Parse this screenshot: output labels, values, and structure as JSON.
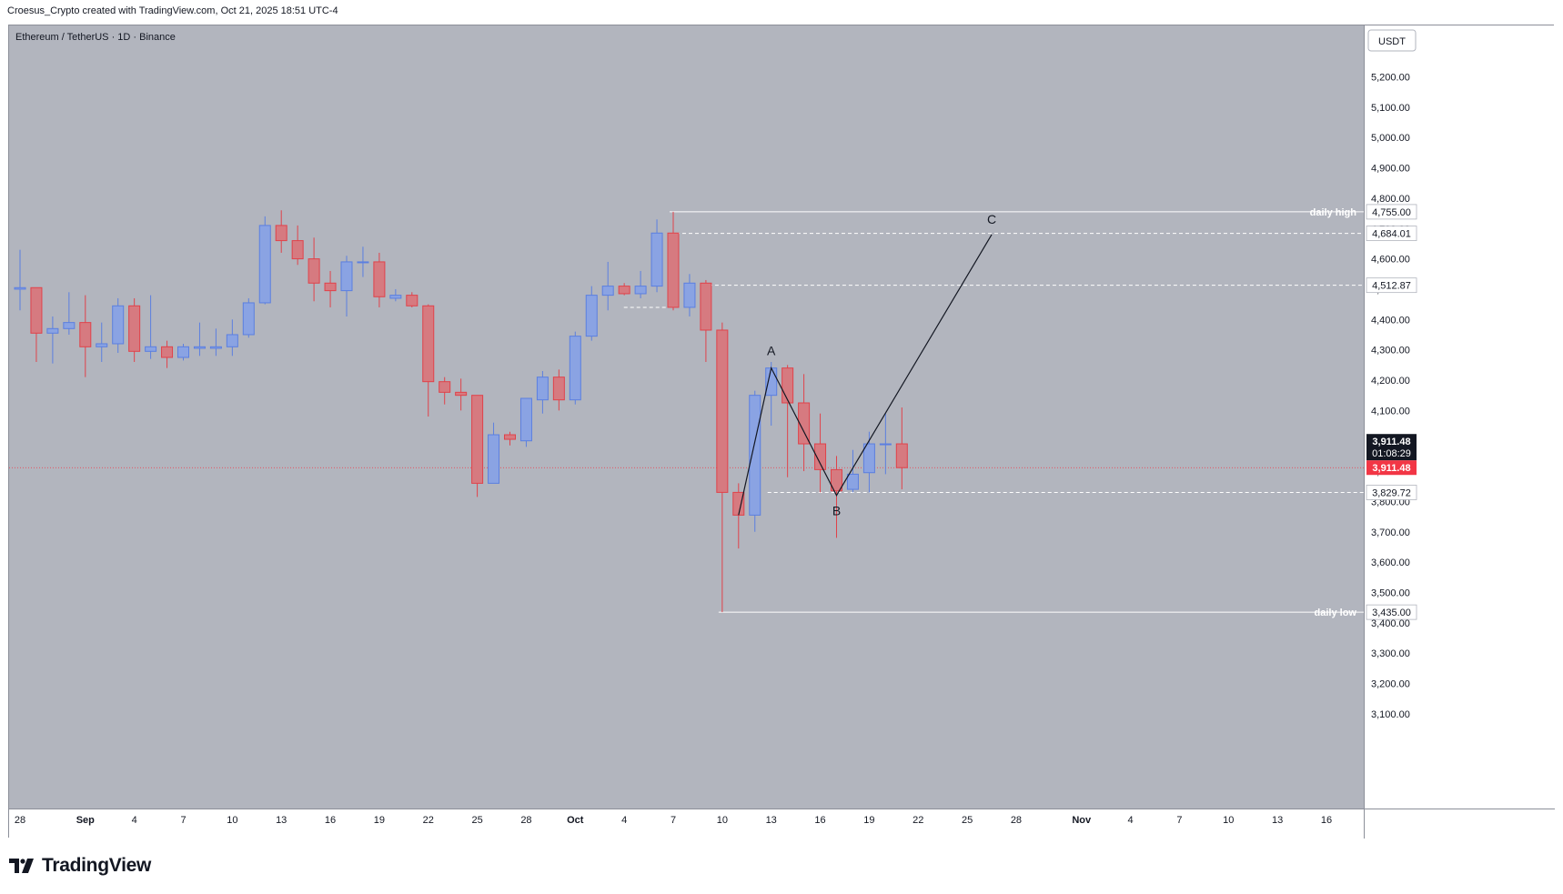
{
  "caption": "Croesus_Crypto created with TradingView.com, Oct 21, 2025 18:51 UTC-4",
  "brand": "TradingView",
  "colors": {
    "background": "#b2b5be",
    "bull": "#5b7fe0",
    "bull_fill": "#8aa3e3",
    "bear": "#e0424a",
    "bear_fill": "#d67a80",
    "annotation": "#ffffff",
    "pattern_line": "#131722",
    "current_price_label": "#f23645",
    "countdown_label": "#131722"
  },
  "chart_data": {
    "type": "candlestick",
    "title": "Ethereum / TetherUS · 1D · Binance",
    "currency": "USDT",
    "ylim": [
      3000,
      5300
    ],
    "y_ticks": [
      "5,200.00",
      "5,100.00",
      "5,000.00",
      "4,900.00",
      "4,800.00",
      "4,700.00",
      "4,600.00",
      "4,500.00",
      "4,400.00",
      "4,300.00",
      "4,200.00",
      "4,100.00",
      "4,000.00",
      "3,900.00",
      "3,800.00",
      "3,700.00",
      "3,600.00",
      "3,500.00",
      "3,400.00",
      "3,300.00",
      "3,200.00",
      "3,100.00"
    ],
    "x_ticks": [
      {
        "label": "28",
        "day": 0
      },
      {
        "label": "Sep",
        "day": 4,
        "bold": true
      },
      {
        "label": "4",
        "day": 7
      },
      {
        "label": "7",
        "day": 10
      },
      {
        "label": "10",
        "day": 13
      },
      {
        "label": "13",
        "day": 16
      },
      {
        "label": "16",
        "day": 19
      },
      {
        "label": "19",
        "day": 22
      },
      {
        "label": "22",
        "day": 25
      },
      {
        "label": "25",
        "day": 28
      },
      {
        "label": "28",
        "day": 31
      },
      {
        "label": "Oct",
        "day": 34,
        "bold": true
      },
      {
        "label": "4",
        "day": 37
      },
      {
        "label": "7",
        "day": 40
      },
      {
        "label": "10",
        "day": 43
      },
      {
        "label": "13",
        "day": 46
      },
      {
        "label": "16",
        "day": 49
      },
      {
        "label": "19",
        "day": 52
      },
      {
        "label": "22",
        "day": 55
      },
      {
        "label": "25",
        "day": 58
      },
      {
        "label": "28",
        "day": 61
      },
      {
        "label": "Nov",
        "day": 65,
        "bold": true
      },
      {
        "label": "4",
        "day": 68
      },
      {
        "label": "7",
        "day": 71
      },
      {
        "label": "10",
        "day": 74
      },
      {
        "label": "13",
        "day": 77
      },
      {
        "label": "16",
        "day": 80
      }
    ],
    "candles": [
      {
        "d": 0,
        "o": 4500,
        "h": 4630,
        "l": 4430,
        "c": 4505
      },
      {
        "d": 1,
        "o": 4505,
        "h": 4505,
        "l": 4260,
        "c": 4355
      },
      {
        "d": 2,
        "o": 4355,
        "h": 4410,
        "l": 4255,
        "c": 4370
      },
      {
        "d": 3,
        "o": 4370,
        "h": 4490,
        "l": 4350,
        "c": 4390
      },
      {
        "d": 4,
        "o": 4390,
        "h": 4480,
        "l": 4210,
        "c": 4310
      },
      {
        "d": 5,
        "o": 4310,
        "h": 4390,
        "l": 4260,
        "c": 4320
      },
      {
        "d": 6,
        "o": 4320,
        "h": 4470,
        "l": 4290,
        "c": 4445
      },
      {
        "d": 7,
        "o": 4445,
        "h": 4470,
        "l": 4260,
        "c": 4295
      },
      {
        "d": 8,
        "o": 4295,
        "h": 4480,
        "l": 4270,
        "c": 4310
      },
      {
        "d": 9,
        "o": 4310,
        "h": 4330,
        "l": 4240,
        "c": 4275
      },
      {
        "d": 10,
        "o": 4275,
        "h": 4320,
        "l": 4265,
        "c": 4310
      },
      {
        "d": 11,
        "o": 4305,
        "h": 4390,
        "l": 4280,
        "c": 4310
      },
      {
        "d": 12,
        "o": 4305,
        "h": 4370,
        "l": 4280,
        "c": 4310
      },
      {
        "d": 13,
        "o": 4310,
        "h": 4400,
        "l": 4280,
        "c": 4350
      },
      {
        "d": 14,
        "o": 4350,
        "h": 4470,
        "l": 4340,
        "c": 4455
      },
      {
        "d": 15,
        "o": 4455,
        "h": 4740,
        "l": 4450,
        "c": 4710
      },
      {
        "d": 16,
        "o": 4710,
        "h": 4760,
        "l": 4620,
        "c": 4660
      },
      {
        "d": 17,
        "o": 4660,
        "h": 4710,
        "l": 4580,
        "c": 4600
      },
      {
        "d": 18,
        "o": 4600,
        "h": 4670,
        "l": 4460,
        "c": 4520
      },
      {
        "d": 19,
        "o": 4520,
        "h": 4560,
        "l": 4440,
        "c": 4495
      },
      {
        "d": 20,
        "o": 4495,
        "h": 4610,
        "l": 4410,
        "c": 4590
      },
      {
        "d": 21,
        "o": 4590,
        "h": 4640,
        "l": 4540,
        "c": 4590
      },
      {
        "d": 22,
        "o": 4590,
        "h": 4620,
        "l": 4440,
        "c": 4475
      },
      {
        "d": 23,
        "o": 4470,
        "h": 4500,
        "l": 4460,
        "c": 4480
      },
      {
        "d": 24,
        "o": 4480,
        "h": 4490,
        "l": 4440,
        "c": 4445
      },
      {
        "d": 25,
        "o": 4445,
        "h": 4450,
        "l": 4080,
        "c": 4195
      },
      {
        "d": 26,
        "o": 4195,
        "h": 4210,
        "l": 4120,
        "c": 4160
      },
      {
        "d": 27,
        "o": 4160,
        "h": 4205,
        "l": 4100,
        "c": 4150
      },
      {
        "d": 28,
        "o": 4150,
        "h": 4150,
        "l": 3815,
        "c": 3860
      },
      {
        "d": 29,
        "o": 3860,
        "h": 4060,
        "l": 3860,
        "c": 4020
      },
      {
        "d": 30,
        "o": 4020,
        "h": 4030,
        "l": 3985,
        "c": 4005
      },
      {
        "d": 31,
        "o": 4000,
        "h": 4140,
        "l": 3980,
        "c": 4140
      },
      {
        "d": 32,
        "o": 4135,
        "h": 4230,
        "l": 4090,
        "c": 4210
      },
      {
        "d": 33,
        "o": 4210,
        "h": 4235,
        "l": 4100,
        "c": 4135
      },
      {
        "d": 34,
        "o": 4135,
        "h": 4360,
        "l": 4120,
        "c": 4345
      },
      {
        "d": 35,
        "o": 4345,
        "h": 4510,
        "l": 4330,
        "c": 4480
      },
      {
        "d": 36,
        "o": 4480,
        "h": 4590,
        "l": 4430,
        "c": 4510
      },
      {
        "d": 37,
        "o": 4510,
        "h": 4520,
        "l": 4480,
        "c": 4485
      },
      {
        "d": 38,
        "o": 4485,
        "h": 4560,
        "l": 4470,
        "c": 4510
      },
      {
        "d": 39,
        "o": 4510,
        "h": 4730,
        "l": 4490,
        "c": 4685
      },
      {
        "d": 40,
        "o": 4685,
        "h": 4755,
        "l": 4430,
        "c": 4440
      },
      {
        "d": 41,
        "o": 4440,
        "h": 4550,
        "l": 4410,
        "c": 4520
      },
      {
        "d": 42,
        "o": 4520,
        "h": 4530,
        "l": 4260,
        "c": 4365
      },
      {
        "d": 43,
        "o": 4365,
        "h": 4390,
        "l": 3435,
        "c": 3830
      },
      {
        "d": 44,
        "o": 3830,
        "h": 3860,
        "l": 3645,
        "c": 3755
      },
      {
        "d": 45,
        "o": 3755,
        "h": 4165,
        "l": 3700,
        "c": 4150
      },
      {
        "d": 46,
        "o": 4150,
        "h": 4260,
        "l": 4050,
        "c": 4240
      },
      {
        "d": 47,
        "o": 4240,
        "h": 4250,
        "l": 3880,
        "c": 4125
      },
      {
        "d": 48,
        "o": 4125,
        "h": 4220,
        "l": 3900,
        "c": 3990
      },
      {
        "d": 49,
        "o": 3990,
        "h": 4090,
        "l": 3830,
        "c": 3905
      },
      {
        "d": 50,
        "o": 3905,
        "h": 3950,
        "l": 3680,
        "c": 3835
      },
      {
        "d": 51,
        "o": 3840,
        "h": 3970,
        "l": 3830,
        "c": 3890
      },
      {
        "d": 52,
        "o": 3895,
        "h": 4030,
        "l": 3830,
        "c": 3990
      },
      {
        "d": 53,
        "o": 3990,
        "h": 4090,
        "l": 3890,
        "c": 3990
      },
      {
        "d": 54,
        "o": 3990,
        "h": 4110,
        "l": 3840,
        "c": 3911.48
      }
    ],
    "levels": [
      {
        "name": "daily high",
        "value": 4755,
        "label": "4,755.00",
        "text": "daily high",
        "style": "solid",
        "from_day": 40
      },
      {
        "name": "level 4684",
        "value": 4684.01,
        "label": "4,684.01",
        "style": "dashed",
        "from_day": 40
      },
      {
        "name": "level 4512",
        "value": 4512.87,
        "label": "4,512.87",
        "style": "dashed",
        "from_day": 42
      },
      {
        "name": "level 4440",
        "value": 4440,
        "style": "dashed",
        "from_day": 37.2,
        "to_day": 40
      },
      {
        "name": "level 3829",
        "value": 3829.72,
        "label": "3,829.72",
        "style": "dashed",
        "from_day": 46
      },
      {
        "name": "daily low",
        "value": 3435,
        "label": "3,435.00",
        "text": "daily low",
        "style": "solid",
        "from_day": 43
      }
    ],
    "current_price": {
      "value": 3911.48,
      "label": "3,911.48",
      "countdown": "01:08:29"
    },
    "abc_pattern": [
      {
        "label": "",
        "day": 44,
        "value": 3755
      },
      {
        "label": "A",
        "day": 46,
        "value": 4240
      },
      {
        "label": "B",
        "day": 50,
        "value": 3820
      },
      {
        "label": "C",
        "day": 59.5,
        "value": 4680
      }
    ]
  }
}
